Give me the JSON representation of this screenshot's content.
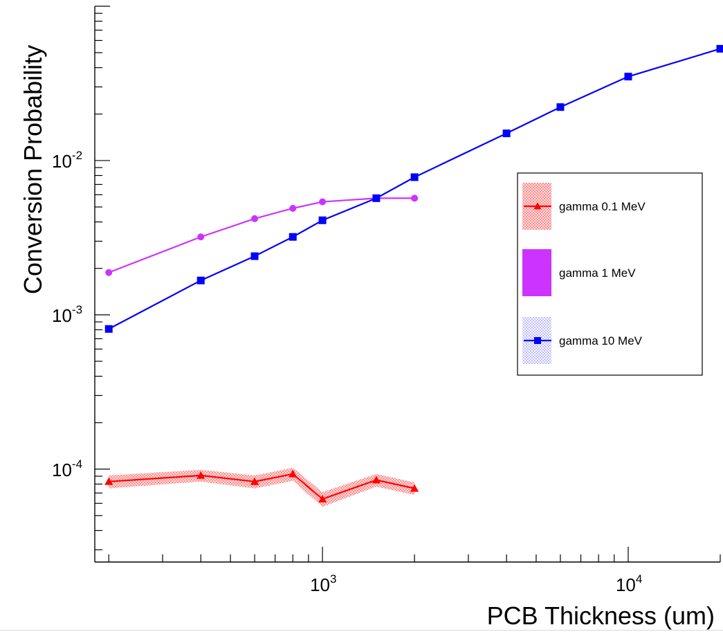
{
  "chart_data": {
    "type": "line",
    "xlabel": "PCB Thickness (um)",
    "ylabel": "Conversion Probability",
    "x_scale": "log",
    "y_scale": "log",
    "xlim": [
      180,
      20000
    ],
    "ylim": [
      2.5e-05,
      0.1
    ],
    "grid": false,
    "legend_position": "right",
    "x_tick_labels": [
      {
        "value": 1000,
        "base": "10",
        "exp": "3"
      },
      {
        "value": 10000,
        "base": "10",
        "exp": "4"
      }
    ],
    "y_tick_labels": [
      {
        "value": 0.0001,
        "base": "10",
        "exp": "-4"
      },
      {
        "value": 0.001,
        "base": "10",
        "exp": "-3"
      },
      {
        "value": 0.01,
        "base": "10",
        "exp": "-2"
      }
    ],
    "series": [
      {
        "name": "gamma 0.1 MeV",
        "color": "#ff0000",
        "marker": "triangle",
        "band": "hatched",
        "x": [
          200,
          400,
          600,
          800,
          1000,
          1500,
          2000
        ],
        "y": [
          8.3e-05,
          9.1e-05,
          8.3e-05,
          9.3e-05,
          6.4e-05,
          8.5e-05,
          7.5e-05
        ],
        "y_err": [
          8e-06,
          8e-06,
          8e-06,
          9e-06,
          7e-06,
          8e-06,
          7e-06
        ]
      },
      {
        "name": "gamma 1 MeV",
        "color": "#cc33ff",
        "marker": "circle",
        "band": "solid",
        "x": [
          200,
          400,
          600,
          800,
          1000,
          1500,
          2000
        ],
        "y": [
          0.00188,
          0.0032,
          0.0042,
          0.0049,
          0.0054,
          0.0057,
          0.0057
        ]
      },
      {
        "name": "gamma 10 MeV",
        "color": "#0000ff",
        "marker": "square",
        "band": "dotted",
        "x": [
          200,
          400,
          600,
          800,
          1000,
          1500,
          2000,
          4000,
          6000,
          10000,
          20000
        ],
        "y": [
          0.00081,
          0.00167,
          0.0024,
          0.0032,
          0.0041,
          0.0057,
          0.0078,
          0.015,
          0.0222,
          0.035,
          0.053
        ]
      }
    ]
  }
}
